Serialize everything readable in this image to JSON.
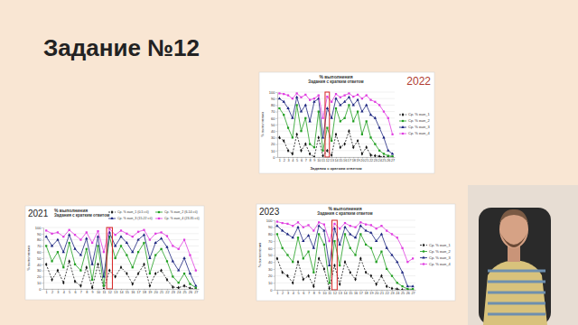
{
  "slide_title": "Задание №12",
  "chart_data": [
    {
      "type": "line",
      "annotation": "2022",
      "title": "% выполнения",
      "subtitle": "Задания с кратким ответом",
      "x_label": "Задания с кратким ответом",
      "y_label": "% выполнения",
      "categories": [
        "1",
        "2",
        "3",
        "4",
        "5",
        "6",
        "7",
        "8",
        "9",
        "10",
        "11",
        "12",
        "13",
        "14",
        "15",
        "16",
        "17",
        "18",
        "19",
        "20",
        "21",
        "22",
        "23",
        "24",
        "25",
        "26",
        "27"
      ],
      "ylim": [
        0,
        100
      ],
      "yticks": [
        0,
        10,
        20,
        30,
        40,
        50,
        60,
        70,
        80,
        90,
        100
      ],
      "grid": true,
      "legend": "right",
      "highlight": 12,
      "series": [
        {
          "name": "Ср. % вып_1",
          "color": "#111111",
          "marker": "diamond",
          "line_style": "dashed",
          "values": [
            30,
            25,
            10,
            5,
            35,
            10,
            20,
            5,
            0,
            30,
            2,
            10,
            3,
            35,
            15,
            20,
            40,
            15,
            25,
            5,
            15,
            3,
            2,
            1,
            0,
            0,
            0
          ]
        },
        {
          "name": "Ср. % вып_2",
          "color": "#1f9e1f",
          "marker": "square",
          "line_style": "solid",
          "values": [
            75,
            65,
            45,
            30,
            80,
            40,
            60,
            20,
            15,
            70,
            10,
            45,
            25,
            75,
            55,
            60,
            80,
            55,
            70,
            35,
            55,
            30,
            20,
            10,
            5,
            2,
            1
          ]
        },
        {
          "name": "Ср. % вып_3",
          "color": "#1a237e",
          "marker": "triangle",
          "line_style": "solid",
          "values": [
            90,
            85,
            75,
            60,
            92,
            70,
            80,
            55,
            85,
            90,
            30,
            75,
            60,
            90,
            80,
            85,
            92,
            80,
            88,
            70,
            80,
            65,
            60,
            45,
            30,
            10,
            5
          ]
        },
        {
          "name": "Ср. % вып_4",
          "color": "#e03ce0",
          "marker": "square",
          "line_style": "solid",
          "values": [
            98,
            97,
            95,
            90,
            98,
            92,
            96,
            88,
            90,
            95,
            60,
            93,
            85,
            97,
            92,
            95,
            98,
            93,
            96,
            90,
            95,
            88,
            85,
            80,
            70,
            60,
            35
          ]
        }
      ]
    },
    {
      "type": "line",
      "annotation": "2021",
      "title": "% выполнения",
      "subtitle": "Задания с кратким ответом",
      "y_label": "% выполнения",
      "categories": [
        "1",
        "2",
        "3",
        "4",
        "5",
        "6",
        "7",
        "8",
        "9",
        "10",
        "11",
        "12",
        "13",
        "14",
        "15",
        "16",
        "17",
        "18",
        "19",
        "20",
        "21",
        "22",
        "23",
        "24",
        "25",
        "26",
        "27"
      ],
      "ylim": [
        0,
        100
      ],
      "yticks": [
        0,
        10,
        20,
        30,
        40,
        50,
        60,
        70,
        80,
        90,
        100
      ],
      "grid": true,
      "legend": "top",
      "highlight": 12,
      "series": [
        {
          "name": "Ср. % вып_1 (0-5 сб)",
          "color": "#111111",
          "marker": "diamond",
          "line_style": "dashed",
          "values": [
            40,
            15,
            30,
            10,
            45,
            12,
            5,
            35,
            2,
            40,
            0,
            30,
            20,
            35,
            25,
            8,
            25,
            40,
            5,
            25,
            30,
            15,
            3,
            2,
            5,
            1,
            0
          ]
        },
        {
          "name": "Ср. % вып_2 (6-14 сб)",
          "color": "#1f9e1f",
          "marker": "square",
          "line_style": "solid",
          "values": [
            70,
            45,
            60,
            35,
            75,
            40,
            30,
            65,
            15,
            70,
            5,
            85,
            50,
            70,
            55,
            35,
            60,
            75,
            25,
            55,
            65,
            45,
            20,
            10,
            25,
            8,
            2
          ]
        },
        {
          "name": "Ср. % вып_3 (15-22 сб)",
          "color": "#1a237e",
          "marker": "triangle",
          "line_style": "solid",
          "values": [
            85,
            70,
            80,
            60,
            88,
            65,
            55,
            82,
            40,
            85,
            20,
            92,
            70,
            85,
            75,
            60,
            80,
            88,
            50,
            75,
            82,
            68,
            45,
            30,
            50,
            25,
            5
          ]
        },
        {
          "name": "Ср. % вып_4 (23-35 сб)",
          "color": "#e03ce0",
          "marker": "square",
          "line_style": "solid",
          "values": [
            95,
            90,
            92,
            85,
            96,
            88,
            80,
            92,
            75,
            94,
            60,
            98,
            88,
            95,
            90,
            85,
            93,
            96,
            80,
            90,
            92,
            86,
            70,
            65,
            80,
            55,
            30
          ]
        }
      ]
    },
    {
      "type": "line",
      "annotation": "2023",
      "title": "% выполнения",
      "subtitle": "Задания с кратким ответом",
      "y_label": "% выполнения",
      "categories": [
        "1",
        "2",
        "3",
        "4",
        "5",
        "6",
        "7",
        "8",
        "9",
        "10",
        "11",
        "12",
        "13",
        "14",
        "15",
        "16",
        "17",
        "18",
        "19",
        "20",
        "21",
        "22",
        "23",
        "24",
        "25",
        "26",
        "27"
      ],
      "ylim": [
        0,
        100
      ],
      "yticks": [
        0,
        10,
        20,
        30,
        40,
        50,
        60,
        70,
        80,
        90,
        100
      ],
      "grid": true,
      "legend": "right",
      "highlight": 12,
      "series": [
        {
          "name": "Ср. % вып_1",
          "color": "#111111",
          "marker": "diamond",
          "line_style": "dashed",
          "values": [
            45,
            25,
            20,
            10,
            40,
            15,
            20,
            5,
            45,
            30,
            2,
            35,
            8,
            40,
            25,
            15,
            45,
            25,
            20,
            8,
            20,
            5,
            2,
            1,
            0,
            0,
            0
          ]
        },
        {
          "name": "Ср. % вып_2",
          "color": "#1f9e1f",
          "marker": "square",
          "line_style": "solid",
          "values": [
            80,
            60,
            50,
            40,
            75,
            45,
            55,
            25,
            80,
            65,
            10,
            70,
            35,
            80,
            60,
            50,
            80,
            65,
            60,
            40,
            55,
            30,
            20,
            10,
            5,
            1,
            1
          ]
        },
        {
          "name": "Ср. % вып_3",
          "color": "#1a237e",
          "marker": "triangle",
          "line_style": "solid",
          "values": [
            92,
            85,
            80,
            75,
            90,
            70,
            78,
            60,
            92,
            85,
            35,
            88,
            65,
            90,
            80,
            75,
            92,
            85,
            82,
            70,
            80,
            60,
            50,
            40,
            25,
            5,
            5
          ]
        },
        {
          "name": "Ср. % вып_4",
          "color": "#e03ce0",
          "marker": "square",
          "line_style": "solid",
          "values": [
            98,
            96,
            95,
            92,
            97,
            90,
            93,
            85,
            97,
            94,
            70,
            95,
            88,
            96,
            92,
            90,
            97,
            94,
            93,
            88,
            92,
            85,
            80,
            75,
            60,
            40,
            45
          ]
        }
      ]
    }
  ]
}
